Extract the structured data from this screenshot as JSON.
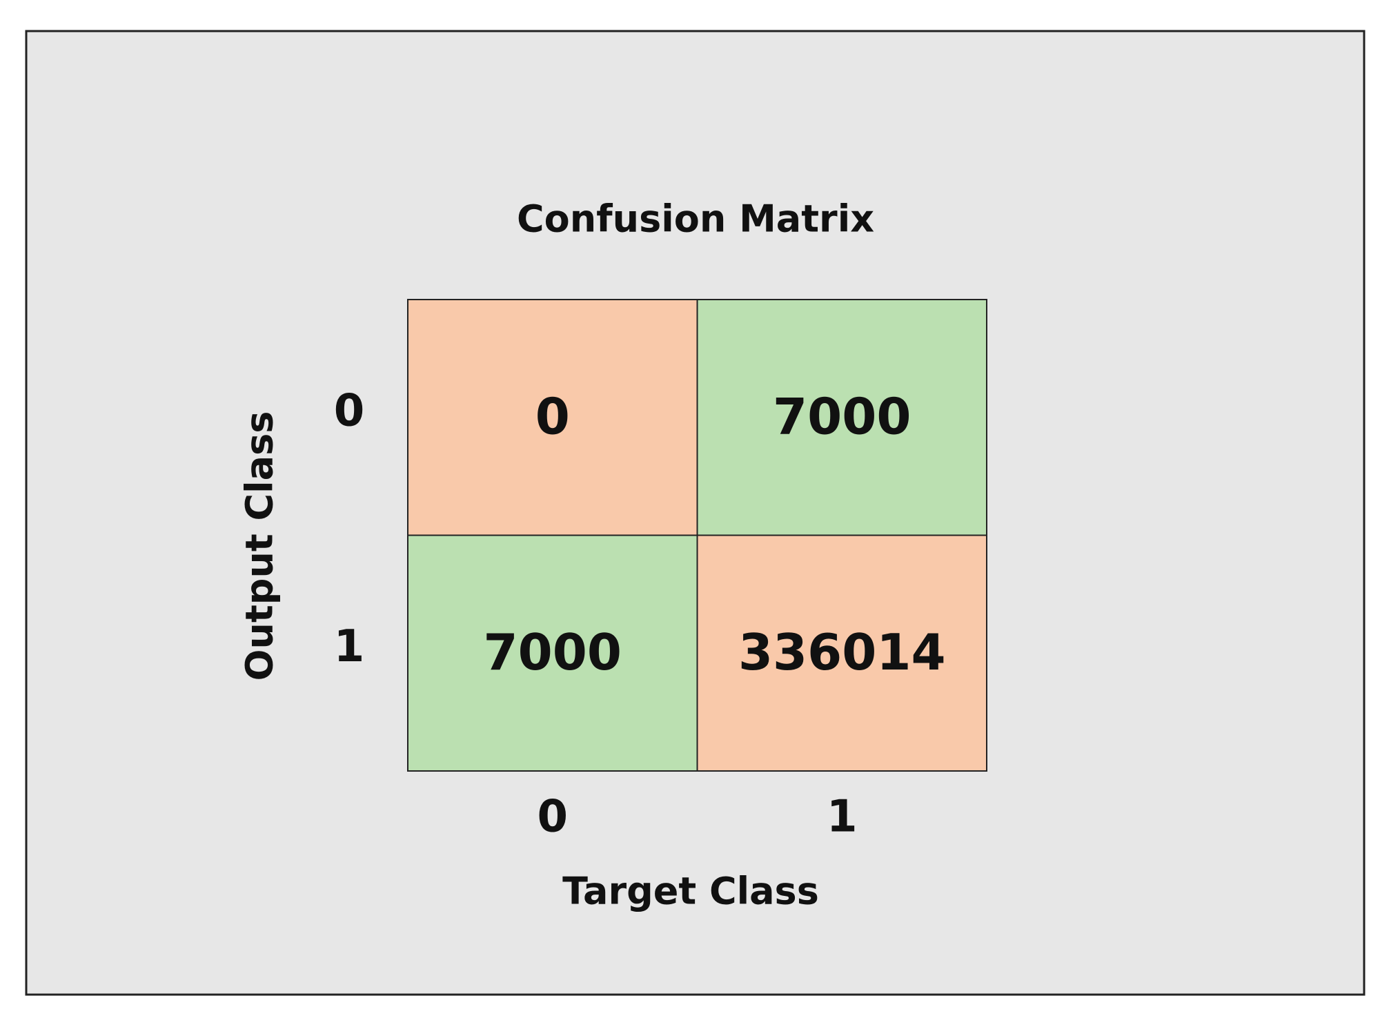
{
  "chart_data": {
    "type": "heatmap",
    "title": "Confusion Matrix",
    "x_label": "Target Class",
    "y_label": "Output Class",
    "x_categories": [
      "0",
      "1"
    ],
    "y_categories": [
      "0",
      "1"
    ],
    "values": [
      [
        0,
        7000
      ],
      [
        7000,
        336014
      ]
    ],
    "colors": [
      [
        "#f9c9aa",
        "#bbe0b1"
      ],
      [
        "#bbe0b1",
        "#f9c9aa"
      ]
    ]
  }
}
